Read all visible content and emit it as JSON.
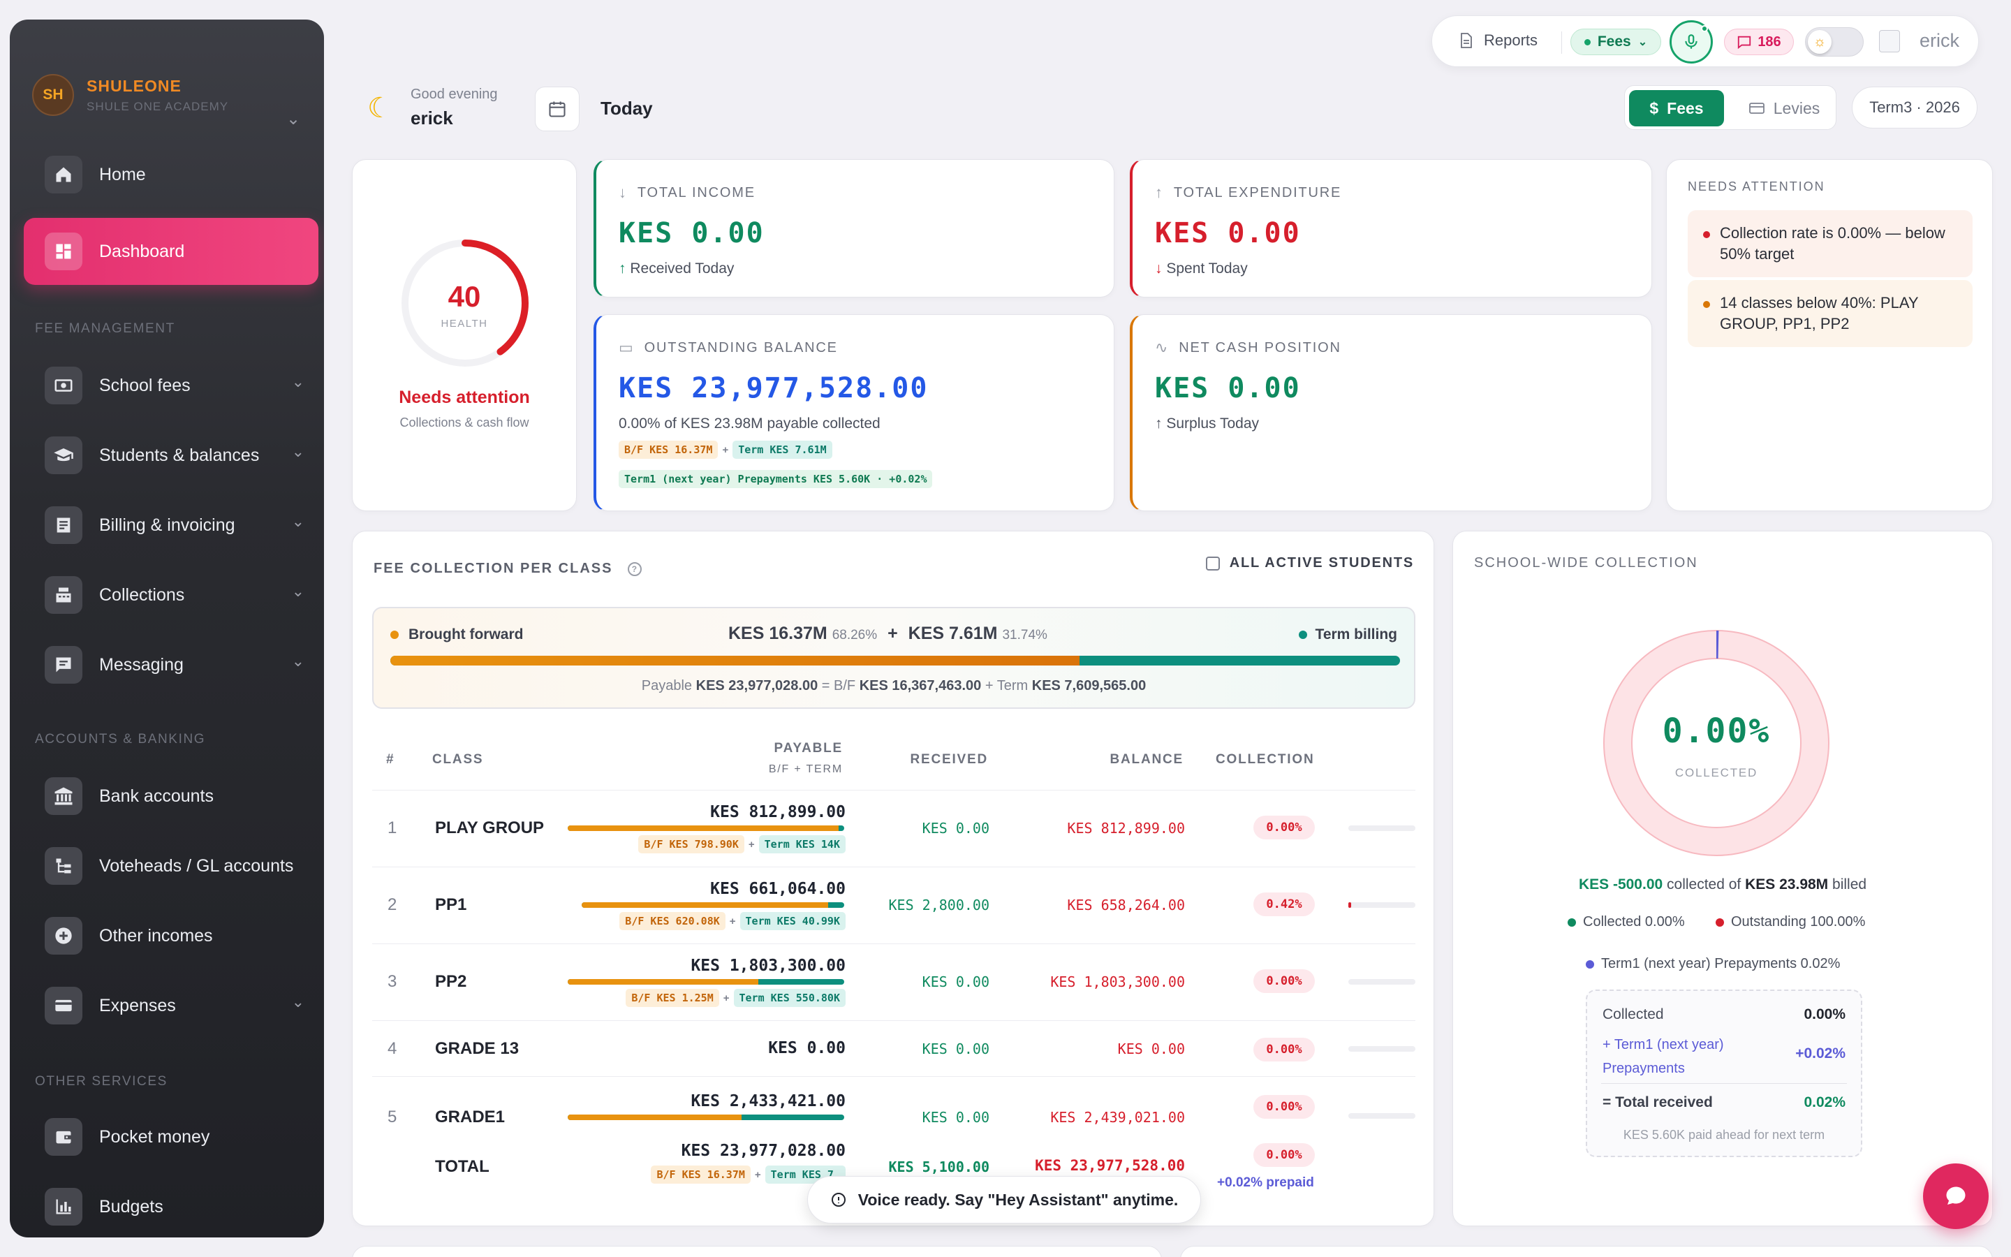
{
  "brand": {
    "initials": "SH",
    "name": "SHULEONE",
    "subtitle": "SHULE ONE ACADEMY"
  },
  "sidebar": {
    "top": [
      {
        "label": "Home",
        "icon": "home-icon"
      },
      {
        "label": "Dashboard",
        "icon": "dashboard-icon",
        "active": true
      }
    ],
    "sections": [
      {
        "title": "FEE MANAGEMENT",
        "items": [
          {
            "label": "School fees"
          },
          {
            "label": "Students & balances"
          },
          {
            "label": "Billing & invoicing"
          },
          {
            "label": "Collections"
          },
          {
            "label": "Messaging"
          }
        ]
      },
      {
        "title": "ACCOUNTS & BANKING",
        "items": [
          {
            "label": "Bank accounts"
          },
          {
            "label": "Voteheads / GL accounts"
          },
          {
            "label": "Other incomes"
          },
          {
            "label": "Expenses"
          }
        ]
      },
      {
        "title": "OTHER SERVICES",
        "items": [
          {
            "label": "Pocket money"
          },
          {
            "label": "Budgets"
          }
        ]
      }
    ]
  },
  "topbar": {
    "reports": "Reports",
    "fees": "Fees",
    "notifications": "186",
    "user": "erick"
  },
  "greeting": {
    "sub": "Good evening",
    "name": "erick",
    "date_label": "Today"
  },
  "view_toggle": {
    "fees": "Fees",
    "levies": "Levies"
  },
  "term": "Term3 · 2026",
  "health": {
    "score": "40",
    "score_value": 40,
    "label": "HEALTH",
    "status": "Needs attention",
    "desc": "Collections & cash flow"
  },
  "metrics": {
    "income": {
      "label": "TOTAL INCOME",
      "value": "KES 0.00",
      "sub": "Received Today"
    },
    "expenditure": {
      "label": "TOTAL EXPENDITURE",
      "value": "KES 0.00",
      "sub": "Spent Today"
    },
    "outstanding": {
      "label": "OUTSTANDING BALANCE",
      "value": "KES 23,977,528.00",
      "sub": "0.00% of KES 23.98M payable collected",
      "chip_bf": "B/F KES 16.37M",
      "chip_term": "Term KES 7.61M",
      "chip_prepay": "Term1 (next year) Prepayments KES 5.60K · +0.02%"
    },
    "net": {
      "label": "NET CASH POSITION",
      "value": "KES 0.00",
      "sub": "Surplus Today"
    }
  },
  "attention": {
    "title": "NEEDS ATTENTION",
    "items": [
      "Collection rate is 0.00% — below 50% target",
      "14 classes below 40%: PLAY GROUP, PP1, PP2"
    ]
  },
  "fee_table": {
    "title": "FEE COLLECTION PER CLASS",
    "all_students": "ALL ACTIVE STUDENTS",
    "bf_label": "Brought forward",
    "bf_amount": "KES 16.37M",
    "bf_pct": "68.26%",
    "bf_fraction": 0.6826,
    "term_amount": "KES 7.61M",
    "term_pct": "31.74%",
    "term_label": "Term billing",
    "payable_prefix": "Payable",
    "payable_total": "KES 23,977,028.00",
    "eq": "= B/F",
    "bf_full": "KES 16,367,463.00",
    "plus_term": "+ Term",
    "term_full": "KES 7,609,565.00",
    "headers": {
      "num": "#",
      "class": "CLASS",
      "payable": "PAYABLE",
      "payable_sub": "B/F + TERM",
      "received": "RECEIVED",
      "balance": "BALANCE",
      "collection": "COLLECTION"
    },
    "rows": [
      {
        "n": "1",
        "cls": "PLAY GROUP",
        "payable": "KES 812,899.00",
        "bf": "B/F KES 798.90K",
        "term": "Term KES 14K",
        "bf_fraction": 0.98,
        "received": "KES 0.00",
        "balance": "KES 812,899.00",
        "collection": "0.00%"
      },
      {
        "n": "2",
        "cls": "PP1",
        "payable": "KES 661,064.00",
        "bf": "B/F KES 620.08K",
        "term": "Term KES 40.99K",
        "bf_fraction": 0.94,
        "received": "KES 2,800.00",
        "balance": "KES 658,264.00",
        "collection": "0.42%"
      },
      {
        "n": "3",
        "cls": "PP2",
        "payable": "KES 1,803,300.00",
        "bf": "B/F KES 1.25M",
        "term": "Term KES 550.80K",
        "bf_fraction": 0.69,
        "received": "KES 0.00",
        "balance": "KES 1,803,300.00",
        "collection": "0.00%"
      },
      {
        "n": "4",
        "cls": "GRADE 13",
        "payable": "KES 0.00",
        "received": "KES 0.00",
        "balance": "KES 0.00",
        "collection": "0.00%"
      },
      {
        "n": "5",
        "cls": "GRADE1",
        "payable": "KES 2,433,421.00",
        "bf_fraction": 0.63,
        "received": "KES 0.00",
        "balance": "KES 2,439,021.00",
        "collection": "0.00%"
      }
    ],
    "total": {
      "label": "TOTAL",
      "payable": "KES 23,977,028.00",
      "bf": "B/F KES 16.37M",
      "term": "Term KES 7.",
      "received": "KES 5,100.00",
      "balance": "KES 23,977,528.00",
      "collection": "0.00%",
      "prepaid": "+0.02% prepaid"
    }
  },
  "school_wide": {
    "title": "SCHOOL-WIDE COLLECTION",
    "pct": "0.00%",
    "pct_value": 0.02,
    "collected_word": "COLLECTED",
    "summary_amount": "KES -500.00",
    "summary_mid": "collected of",
    "summary_total": "KES 23.98M",
    "summary_end": "billed",
    "legend": [
      "Collected 0.00%",
      "Outstanding 100.00%",
      "Term1 (next year) Prepayments 0.02%"
    ],
    "kpi": {
      "collected_label": "Collected",
      "collected_val": "0.00%",
      "prepay_label": "+ Term1 (next year) Prepayments",
      "prepay_val": "+0.02%",
      "total_label": "= Total received",
      "total_val": "0.02%",
      "note": "KES 5.60K paid ahead for next term"
    }
  },
  "toast": "Voice ready. Say \"Hey Assistant\" anytime.",
  "colors": {
    "accent": "#e32f6e",
    "green": "#0f8a5f",
    "red": "#d61f2c",
    "blue": "#2458e6",
    "orange": "#d97706",
    "teal": "#0d8f7e"
  }
}
